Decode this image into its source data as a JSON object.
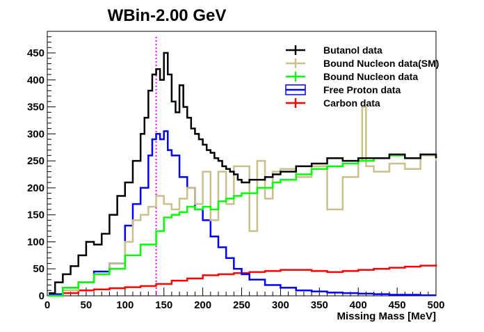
{
  "chart_data": {
    "type": "line",
    "title": "WBin-2.00 GeV",
    "xlabel": "Missing Mass [MeV]",
    "ylabel": "",
    "xlim": [
      0,
      500
    ],
    "ylim": [
      0,
      490
    ],
    "x_ticks": [
      0,
      50,
      100,
      150,
      200,
      250,
      300,
      350,
      400,
      450,
      500
    ],
    "y_ticks": [
      0,
      50,
      100,
      150,
      200,
      250,
      300,
      350,
      400,
      450
    ],
    "grid": false,
    "legend_position": "top-right",
    "marker_line": {
      "x": 140,
      "color": "#ff00ff",
      "style": "dotted"
    },
    "series": [
      {
        "name": "Butanol data",
        "color": "#000000",
        "x": [
          2,
          10,
          20,
          30,
          40,
          50,
          60,
          70,
          80,
          90,
          100,
          110,
          120,
          125,
          130,
          135,
          140,
          145,
          150,
          155,
          160,
          165,
          170,
          175,
          180,
          185,
          190,
          195,
          200,
          205,
          210,
          215,
          220,
          225,
          230,
          235,
          240,
          245,
          250,
          260,
          270,
          280,
          290,
          300,
          320,
          340,
          360,
          380,
          400,
          420,
          440,
          460,
          480,
          500
        ],
        "y": [
          5,
          25,
          40,
          55,
          75,
          100,
          95,
          115,
          150,
          185,
          210,
          250,
          300,
          330,
          380,
          410,
          420,
          400,
          450,
          410,
          360,
          340,
          390,
          350,
          330,
          310,
          300,
          290,
          280,
          270,
          265,
          255,
          250,
          240,
          235,
          230,
          225,
          215,
          210,
          215,
          215,
          220,
          225,
          230,
          240,
          245,
          255,
          250,
          255,
          255,
          262,
          255,
          262,
          255
        ]
      },
      {
        "name": "Bound Nucleon data(SM)",
        "color": "#c9c08a",
        "x": [
          2,
          20,
          40,
          60,
          80,
          100,
          110,
          120,
          130,
          140,
          150,
          160,
          170,
          180,
          190,
          200,
          210,
          220,
          230,
          240,
          250,
          260,
          270,
          280,
          290,
          300,
          320,
          340,
          360,
          380,
          400,
          405,
          410,
          420,
          440,
          460,
          480,
          500
        ],
        "y": [
          0,
          10,
          25,
          40,
          60,
          100,
          140,
          150,
          165,
          185,
          170,
          160,
          180,
          200,
          170,
          230,
          140,
          230,
          170,
          240,
          240,
          120,
          250,
          180,
          230,
          235,
          220,
          240,
          160,
          220,
          250,
          350,
          240,
          230,
          245,
          235,
          260,
          250
        ]
      },
      {
        "name": "Bound Nucleon data",
        "color": "#00ff00",
        "x": [
          2,
          20,
          40,
          60,
          80,
          100,
          120,
          140,
          150,
          160,
          170,
          180,
          190,
          200,
          210,
          220,
          230,
          240,
          250,
          260,
          270,
          280,
          290,
          300,
          320,
          340,
          360,
          380,
          400,
          420,
          440,
          460,
          480,
          500
        ],
        "y": [
          0,
          15,
          25,
          40,
          50,
          75,
          95,
          120,
          145,
          150,
          155,
          165,
          160,
          165,
          160,
          175,
          180,
          185,
          190,
          190,
          200,
          200,
          210,
          215,
          225,
          235,
          240,
          245,
          250,
          255,
          260,
          255,
          262,
          255
        ]
      },
      {
        "name": "Free Proton data",
        "color": "#0000ff",
        "x": [
          2,
          20,
          40,
          60,
          80,
          100,
          110,
          120,
          130,
          135,
          140,
          145,
          150,
          155,
          160,
          170,
          180,
          190,
          200,
          210,
          220,
          230,
          240,
          250,
          260,
          280,
          300,
          320,
          340,
          360,
          380,
          400,
          420,
          440,
          460,
          480,
          500
        ],
        "y": [
          3,
          15,
          25,
          45,
          60,
          130,
          170,
          200,
          260,
          290,
          300,
          290,
          305,
          270,
          260,
          220,
          200,
          160,
          140,
          110,
          90,
          70,
          50,
          40,
          30,
          20,
          15,
          10,
          8,
          6,
          5,
          4,
          3,
          2,
          2,
          1,
          1
        ]
      },
      {
        "name": "Carbon data",
        "color": "#ff0000",
        "x": [
          2,
          20,
          40,
          60,
          80,
          100,
          120,
          140,
          160,
          180,
          200,
          220,
          240,
          260,
          280,
          300,
          320,
          340,
          360,
          380,
          400,
          420,
          440,
          460,
          480,
          500
        ],
        "y": [
          1,
          5,
          10,
          12,
          14,
          16,
          18,
          22,
          28,
          32,
          38,
          40,
          42,
          44,
          46,
          48,
          48,
          46,
          44,
          46,
          48,
          50,
          52,
          54,
          56,
          58
        ]
      }
    ]
  }
}
